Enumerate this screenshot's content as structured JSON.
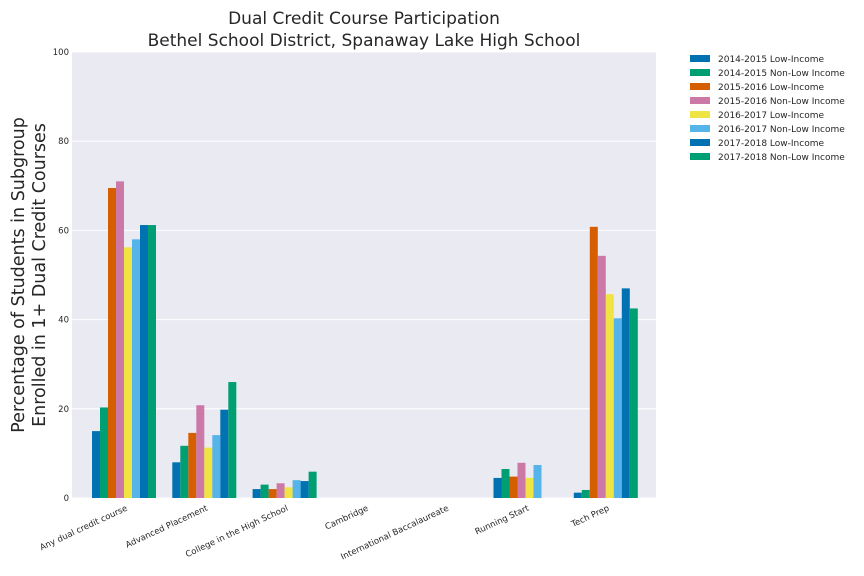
{
  "chart_data": {
    "type": "bar",
    "title": [
      "Dual Credit Course Participation",
      "Bethel School District, Spanaway Lake High School"
    ],
    "xlabel": "",
    "ylabel": [
      "Percentage of Students in Subgroup",
      "Enrolled in 1+ Dual Credit Courses"
    ],
    "ylim": [
      0,
      100
    ],
    "yticks": [
      0,
      20,
      40,
      60,
      80,
      100
    ],
    "grid": true,
    "legend_position": "outside-top-right",
    "categories": [
      "Any dual credit course",
      "Advanced Placement",
      "College in the High School",
      "Cambridge",
      "International Baccalaureate",
      "Running Start",
      "Tech Prep"
    ],
    "series": [
      {
        "name": "2014-2015 Low-Income",
        "color": "#0072b2",
        "values": [
          15.0,
          8.0,
          2.0,
          0,
          0,
          4.5,
          1.2
        ]
      },
      {
        "name": "2014-2015 Non-Low Income",
        "color": "#009e73",
        "values": [
          20.3,
          11.7,
          3.0,
          0,
          0,
          6.5,
          1.8
        ]
      },
      {
        "name": "2015-2016 Low-Income",
        "color": "#d55e00",
        "values": [
          69.5,
          14.6,
          2.0,
          0,
          0,
          4.8,
          60.8
        ]
      },
      {
        "name": "2015-2016 Non-Low Income",
        "color": "#cc79a7",
        "values": [
          71.0,
          20.8,
          3.3,
          0,
          0,
          7.9,
          54.3
        ]
      },
      {
        "name": "2016-2017 Low-Income",
        "color": "#f0e442",
        "values": [
          56.2,
          11.3,
          2.4,
          0,
          0,
          4.5,
          45.7
        ]
      },
      {
        "name": "2016-2017 Non-Low Income",
        "color": "#56b4e9",
        "values": [
          58.0,
          14.1,
          4.0,
          0,
          0,
          7.4,
          40.3
        ]
      },
      {
        "name": "2017-2018 Low-Income",
        "color": "#0072b2",
        "values": [
          61.2,
          19.8,
          3.8,
          0,
          0,
          0,
          47.0
        ]
      },
      {
        "name": "2017-2018 Non-Low Income",
        "color": "#009e73",
        "values": [
          61.2,
          26.0,
          5.9,
          0,
          0,
          0,
          42.5
        ]
      }
    ]
  }
}
